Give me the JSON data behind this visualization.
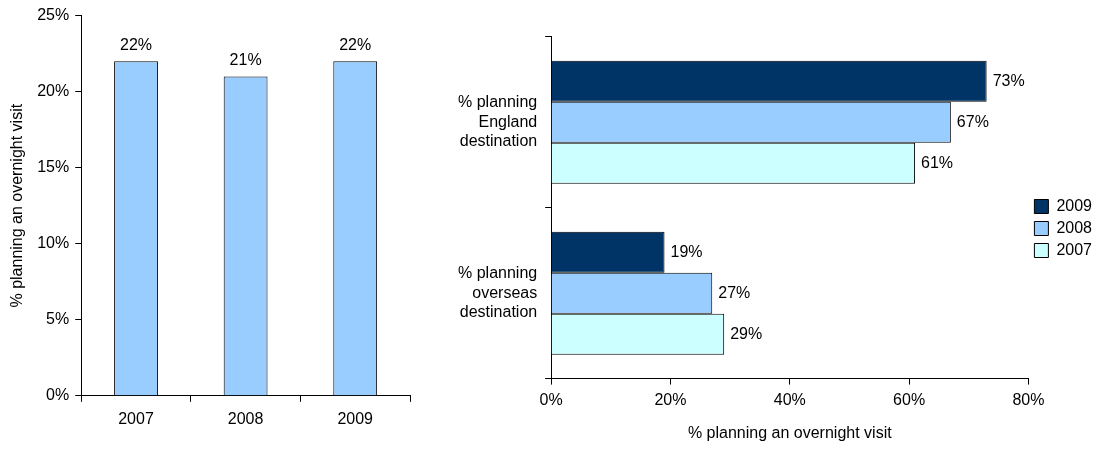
{
  "chart_data": [
    {
      "type": "bar",
      "ylabel": "% planning an overnight visit",
      "categories": [
        "2007",
        "2008",
        "2009"
      ],
      "values": [
        22,
        21,
        22
      ],
      "value_labels": [
        "22%",
        "21%",
        "22%"
      ],
      "color": "#99ccff",
      "ylim": [
        0,
        25
      ],
      "yticks": [
        {
          "value": 0,
          "label": "0%"
        },
        {
          "value": 5,
          "label": "5%"
        },
        {
          "value": 10,
          "label": "10%"
        },
        {
          "value": 15,
          "label": "15%"
        },
        {
          "value": 20,
          "label": "20%"
        },
        {
          "value": 25,
          "label": "25%"
        }
      ],
      "grid": false,
      "legend": false
    },
    {
      "type": "bar",
      "orientation": "horizontal",
      "xlabel": "% planning an overnight visit",
      "categories": [
        "% planning England destination",
        "% planning overseas destination"
      ],
      "series": [
        {
          "name": "2009",
          "color": "#003366",
          "values": [
            73,
            19
          ],
          "value_labels": [
            "73%",
            "19%"
          ]
        },
        {
          "name": "2008",
          "color": "#99ccff",
          "values": [
            67,
            27
          ],
          "value_labels": [
            "67%",
            "27%"
          ]
        },
        {
          "name": "2007",
          "color": "#ccffff",
          "values": [
            61,
            29
          ],
          "value_labels": [
            "61%",
            "29%"
          ]
        }
      ],
      "xlim": [
        0,
        80
      ],
      "xticks": [
        {
          "value": 0,
          "label": "0%"
        },
        {
          "value": 20,
          "label": "20%"
        },
        {
          "value": 40,
          "label": "40%"
        },
        {
          "value": 60,
          "label": "60%"
        },
        {
          "value": 80,
          "label": "80%"
        }
      ],
      "grid": false,
      "legend": "right"
    }
  ]
}
